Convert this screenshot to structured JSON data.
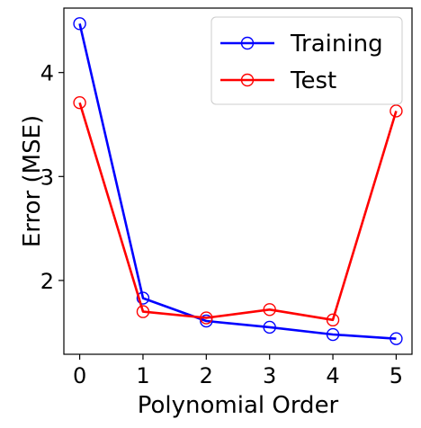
{
  "chart_data": {
    "type": "line",
    "xlabel": "Polynomial Order",
    "ylabel": "Error (MSE)",
    "x": [
      0,
      1,
      2,
      3,
      4,
      5
    ],
    "xlim": [
      -0.25,
      5.25
    ],
    "ylim": [
      1.29,
      4.62
    ],
    "xticks": [
      0,
      1,
      2,
      3,
      4,
      5
    ],
    "yticks": [
      2,
      3,
      4
    ],
    "grid": false,
    "legend_position": "top-right",
    "series": [
      {
        "name": "Training",
        "color": "#0000ff",
        "marker": "hollow-circle",
        "values": [
          4.47,
          1.83,
          1.61,
          1.55,
          1.48,
          1.44
        ]
      },
      {
        "name": "Test",
        "color": "#ff0000",
        "marker": "hollow-circle",
        "values": [
          3.71,
          1.7,
          1.64,
          1.72,
          1.62,
          3.63
        ]
      }
    ]
  }
}
